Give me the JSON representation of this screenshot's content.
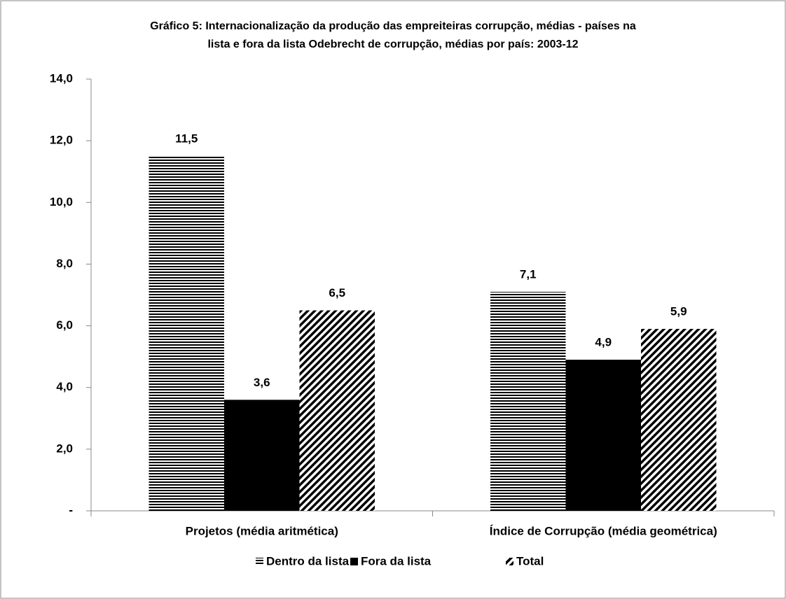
{
  "chart_data": {
    "type": "bar",
    "title": [
      "Gráfico 5: Internacionalização da produção das empreiteiras  corrupção, médias - países na",
      "lista e fora da lista Odebrecht de corrupção, médias por país: 2003-12"
    ],
    "categories": [
      "Projetos (média aritmética)",
      "Índice de Corrupção (média geométrica)"
    ],
    "series": [
      {
        "name": "Dentro da lista",
        "color": "#000000",
        "pattern": "horizontal",
        "values": [
          11.5,
          7.1
        ],
        "value_labels": [
          "11,5",
          "7,1"
        ]
      },
      {
        "name": "Fora da lista",
        "color": "#000000",
        "pattern": "solid",
        "values": [
          3.6,
          4.9
        ],
        "value_labels": [
          "3,6",
          "4,9"
        ]
      },
      {
        "name": "Total",
        "color": "#000000",
        "pattern": "diagonal",
        "values": [
          6.5,
          5.9
        ],
        "value_labels": [
          "6,5",
          "5,9"
        ]
      }
    ],
    "ylim": [
      0,
      14
    ],
    "yticks": [
      {
        "value": 0,
        "label": "-"
      },
      {
        "value": 2,
        "label": "2,0"
      },
      {
        "value": 4,
        "label": "4,0"
      },
      {
        "value": 6,
        "label": "6,0"
      },
      {
        "value": 8,
        "label": "8,0"
      },
      {
        "value": 10,
        "label": "10,0"
      },
      {
        "value": 12,
        "label": "12,0"
      },
      {
        "value": 14,
        "label": "14,0"
      }
    ],
    "grid": false,
    "legend": "bottom"
  }
}
